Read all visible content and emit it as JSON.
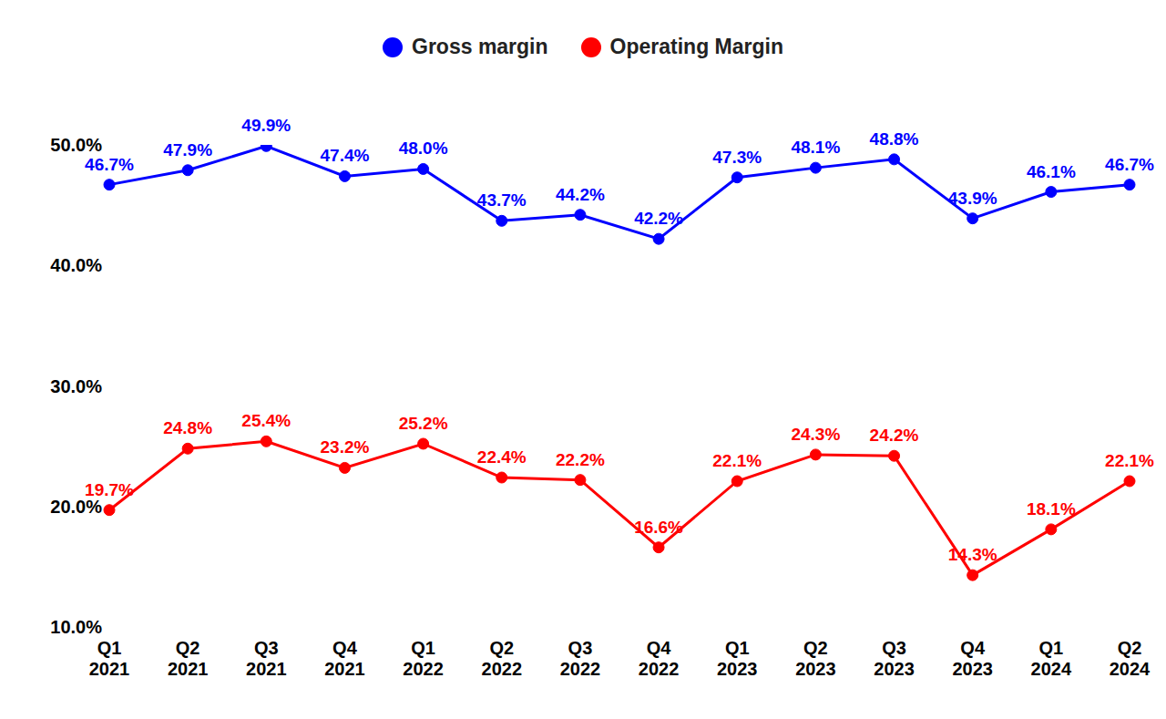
{
  "chart_data": {
    "type": "line",
    "categories": [
      "Q1 2021",
      "Q2 2021",
      "Q3 2021",
      "Q4 2021",
      "Q1 2022",
      "Q2 2022",
      "Q3 2022",
      "Q4 2022",
      "Q1 2023",
      "Q2 2023",
      "Q3 2023",
      "Q4 2023",
      "Q1 2024",
      "Q2 2024"
    ],
    "series": [
      {
        "name": "Gross margin",
        "color": "#0000ff",
        "marker": "circle",
        "values": [
          46.7,
          47.9,
          49.9,
          47.4,
          48.0,
          43.7,
          44.2,
          42.2,
          47.3,
          48.1,
          48.8,
          43.9,
          46.1,
          46.7
        ],
        "value_labels": [
          "46.7%",
          "47.9%",
          "49.9%",
          "47.4%",
          "48.0%",
          "43.7%",
          "44.2%",
          "42.2%",
          "47.3%",
          "48.1%",
          "48.8%",
          "43.9%",
          "46.1%",
          "46.7%"
        ]
      },
      {
        "name": "Operating Margin",
        "color": "#ff0000",
        "marker": "circle",
        "values": [
          19.7,
          24.8,
          25.4,
          23.2,
          25.2,
          22.4,
          22.2,
          16.6,
          22.1,
          24.3,
          24.2,
          14.3,
          18.1,
          22.1
        ],
        "value_labels": [
          "19.7%",
          "24.8%",
          "25.4%",
          "23.2%",
          "25.2%",
          "22.4%",
          "22.2%",
          "16.6%",
          "22.1%",
          "24.3%",
          "24.2%",
          "14.3%",
          "18.1%",
          "22.1%"
        ]
      }
    ],
    "ylim": [
      10,
      50
    ],
    "yticks": [
      {
        "value": 10,
        "label": "10.0%"
      },
      {
        "value": 20,
        "label": "20.0%"
      },
      {
        "value": 30,
        "label": "30.0%"
      },
      {
        "value": 40,
        "label": "40.0%"
      },
      {
        "value": 50,
        "label": "50.0%"
      }
    ],
    "grid": false,
    "legend": "top",
    "data_labels": true
  }
}
